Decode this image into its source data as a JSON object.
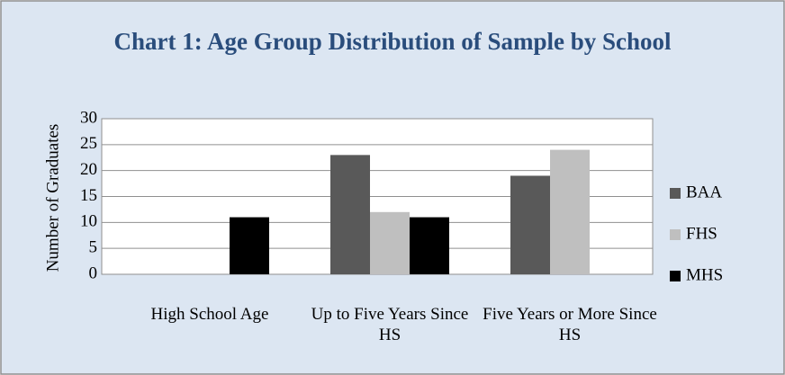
{
  "chart_data": {
    "type": "bar",
    "title": "Chart 1: Age Group Distribution of Sample by School",
    "y_label": "Number of Graduates",
    "categories": [
      "High School Age",
      "Up to Five Years Since HS",
      "Five Years or More Since HS"
    ],
    "series": [
      {
        "name": "BAA",
        "color": "#595959",
        "values": [
          0,
          23,
          19
        ]
      },
      {
        "name": "FHS",
        "color": "#bfbfbf",
        "values": [
          0,
          12,
          24
        ]
      },
      {
        "name": "MHS",
        "color": "#000000",
        "values": [
          11,
          11,
          0
        ]
      }
    ],
    "ylim": [
      0,
      30
    ],
    "yticks": [
      0,
      5,
      10,
      15,
      20,
      25,
      30
    ],
    "grid": true,
    "legend": "right"
  }
}
